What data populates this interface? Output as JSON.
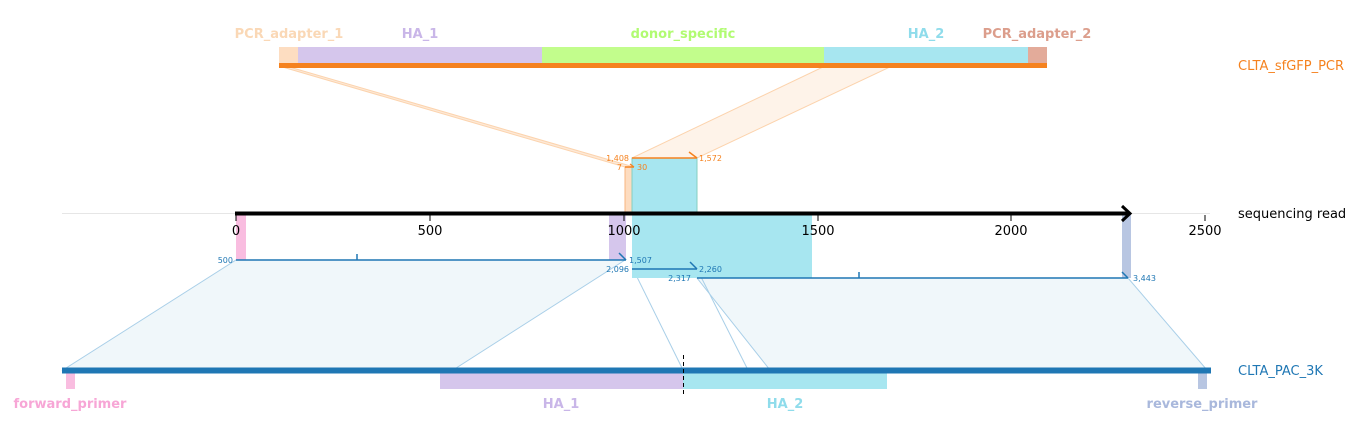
{
  "colors": {
    "pcr_line": "#f5821f",
    "read_line": "#000000",
    "ref_line": "#1f77b4",
    "pcr_adapter_1": "#fddcc0",
    "ha1": "#d5c6ec",
    "donor_specific": "#c2fd8c",
    "ha2": "#a7e6f0",
    "pcr_adapter_2": "#e3ab9a",
    "forward_primer": "#f9bde0",
    "reverse_primer": "#b8c6e2",
    "pcr_fill": "#fde4cf",
    "ref_fill": "#e5f0f5",
    "ref_conn": "#9fc9e6"
  },
  "top_track": {
    "name": "CLTA_sfGFP_PCR",
    "features": [
      {
        "key": "pcr_adapter_1",
        "label": "PCR_adapter_1",
        "color": "#fbd9ba",
        "text_color": "#fad8b6"
      },
      {
        "key": "ha1",
        "label": "HA_1",
        "color": "#d5c6ec",
        "text_color": "#c9b6e8"
      },
      {
        "key": "donor_specific",
        "label": "donor_specific",
        "color": "#c2fd8c",
        "text_color": "#b1fb72"
      },
      {
        "key": "ha2",
        "label": "HA_2",
        "color": "#a7e6f0",
        "text_color": "#8fdceb"
      },
      {
        "key": "pcr_adapter_2",
        "label": "PCR_adapter_2",
        "color": "#e3ab9a",
        "text_color": "#dc9e8c"
      }
    ]
  },
  "read_track": {
    "name": "sequencing read",
    "axis_ticks": [
      "0",
      "500",
      "1000",
      "1500",
      "2000",
      "2500"
    ]
  },
  "bottom_track": {
    "name": "CLTA_PAC_3K",
    "features": [
      {
        "key": "forward_primer",
        "label": "forward_primer",
        "color": "#f9bde0",
        "text_color": "#f7a6d6"
      },
      {
        "key": "ha1",
        "label": "HA_1",
        "color": "#d5c6ec",
        "text_color": "#c9b6e8"
      },
      {
        "key": "ha2",
        "label": "HA_2",
        "color": "#a7e6f0",
        "text_color": "#8fdceb"
      },
      {
        "key": "reverse_primer",
        "label": "reverse_primer",
        "color": "#b8c6e2",
        "text_color": "#a9b8dc"
      }
    ]
  },
  "alignment_labels": {
    "pcr_start": "1,408",
    "pcr_end": "1,572",
    "pcr_small_start": "7",
    "pcr_small_end": "30",
    "ref1_start": "500",
    "ref1_end": "1,507",
    "ref2_start": "2,096",
    "ref2_end": "2,260",
    "ref3_start": "2,317",
    "ref3_end": "3,443"
  }
}
